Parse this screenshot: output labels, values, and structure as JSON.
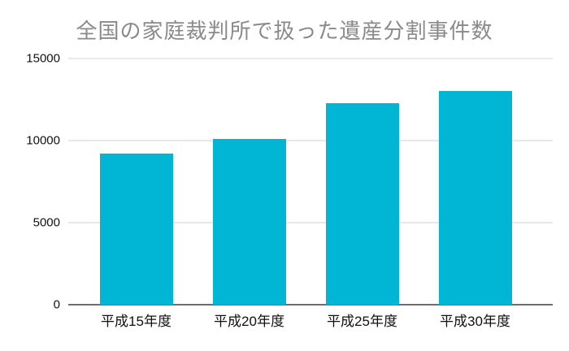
{
  "chart": {
    "title": "全国の家庭裁判所で扱った遺産分割事件数"
  },
  "chart_data": {
    "type": "bar",
    "title": "全国の家庭裁判所で扱った遺産分割事件数",
    "categories": [
      "平成15年度",
      "平成20年度",
      "平成25年度",
      "平成30年度"
    ],
    "values": [
      9200,
      10100,
      12300,
      13000
    ],
    "xlabel": "",
    "ylabel": "",
    "ylim": [
      0,
      15000
    ],
    "yticks": [
      0,
      5000,
      10000,
      15000
    ],
    "grid": true,
    "legend": false,
    "bar_color": "#00b6d4",
    "title_color": "#8a8a8a",
    "grid_color": "#e8e8e8",
    "axis_line_color": "#6e6e6e",
    "label_color": "#111111",
    "background_color": "#ffffff"
  }
}
